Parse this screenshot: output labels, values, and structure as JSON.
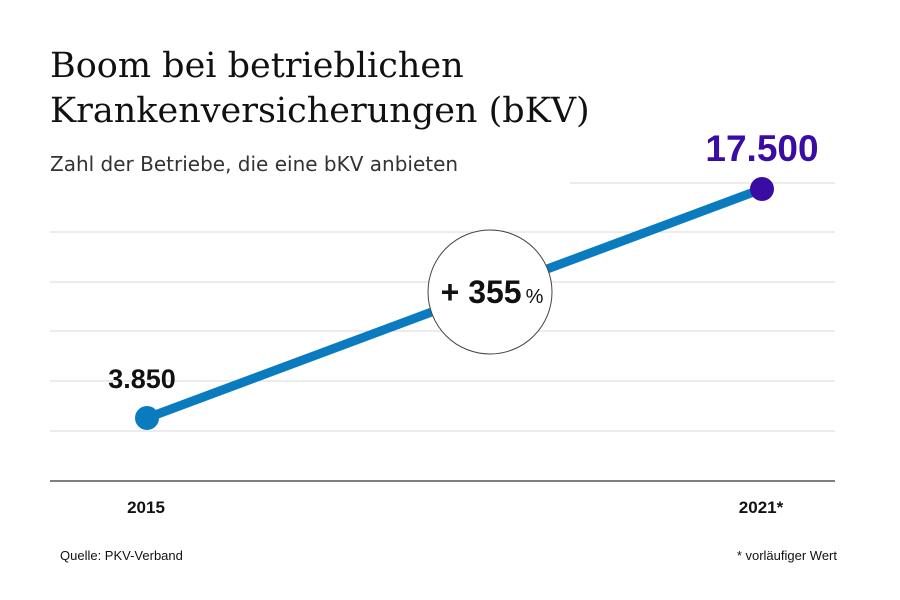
{
  "title_line1": "Boom bei betrieblichen",
  "title_line2": "Krankenversicherungen (bKV)",
  "subtitle": "Zahl der Betriebe, die eine bKV anbieten",
  "source": "Quelle: PKV-Verband",
  "footnote": "* vorläufiger Wert",
  "colors": {
    "line": "#0a7bbf",
    "start_point": "#0a7bbf",
    "end_point": "#3a0ca3",
    "end_label": "#3a0ca3",
    "grid": "#d9d9d9",
    "baseline": "#555555"
  },
  "change_badge": {
    "sign_value": "+ 355",
    "unit": "%"
  },
  "chart_data": {
    "type": "line",
    "title": "Boom bei betrieblichen Krankenversicherungen (bKV)",
    "subtitle": "Zahl der Betriebe, die eine bKV anbieten",
    "categories": [
      "2015",
      "2021*"
    ],
    "series": [
      {
        "values": [
          3850,
          17500
        ],
        "labels": [
          "3.850",
          "17.500"
        ]
      }
    ],
    "ylim": [
      0,
      17500
    ],
    "grid": true,
    "legend": "none",
    "annotations": [
      "+ 355 %"
    ]
  }
}
